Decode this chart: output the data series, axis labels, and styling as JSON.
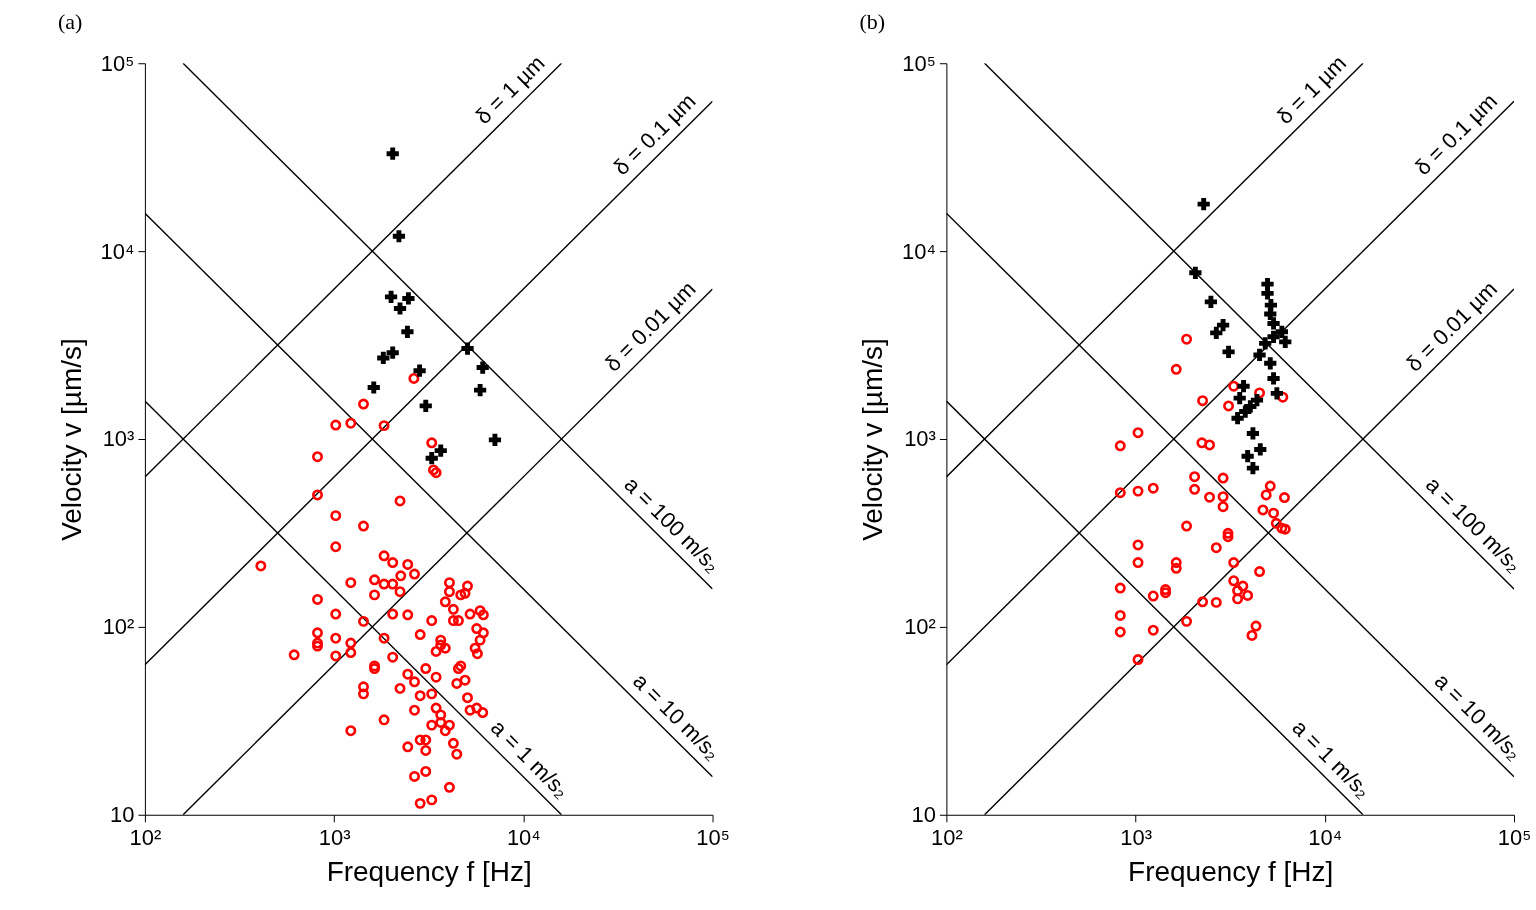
{
  "chart_data": [
    {
      "type": "scatter",
      "title": "(a)",
      "xlabel": "Frequency f [Hz]",
      "ylabel": "Velocity v [µm/s]",
      "log": "xy",
      "xlim": [
        100,
        100000
      ],
      "ylim": [
        10,
        100000
      ],
      "xticks": [
        {
          "value": 100,
          "label": "10²"
        },
        {
          "value": 1000,
          "label": "10³"
        },
        {
          "value": 10000,
          "label": "10⁴"
        },
        {
          "value": 100000,
          "label": "10⁵"
        }
      ],
      "yticks": [
        10,
        {
          "value": 100,
          "label": "10²"
        },
        {
          "value": 1000,
          "label": "10³"
        },
        {
          "value": 10000,
          "label": "10⁴"
        },
        {
          "value": 100000,
          "label": "10⁵"
        }
      ],
      "series": [
        {
          "type": "line",
          "name": "δ = 1 µm",
          "color": "#000000",
          "x": [
            100,
            15915
          ],
          "values": [
            628.3,
            100000
          ]
        },
        {
          "type": "line",
          "name": "δ = 0.1 µm",
          "color": "#000000",
          "x": [
            100,
            100000
          ],
          "values": [
            62.83,
            62832
          ]
        },
        {
          "type": "line",
          "name": "δ = 0.01 µm",
          "color": "#000000",
          "x": [
            159.15,
            100000
          ],
          "values": [
            10,
            6283.2
          ]
        },
        {
          "type": "line",
          "name": "a = 1 m/s₂",
          "color": "#000000",
          "x": [
            100,
            15915
          ],
          "values": [
            1591.5,
            10
          ]
        },
        {
          "type": "line",
          "name": "a = 10 m/s₂",
          "color": "#000000",
          "x": [
            100,
            100000
          ],
          "values": [
            15915,
            15.915
          ]
        },
        {
          "type": "line",
          "name": "a = 100 m/s₂",
          "color": "#000000",
          "x": [
            159.15,
            100000
          ],
          "values": [
            100000,
            159.15
          ]
        },
        {
          "type": "scatter",
          "marker": "circle",
          "color": "#ff0000",
          "x": [
            2640,
            1430,
            1020,
            1225,
            1837,
            817,
            3280,
            3350,
            3460,
            817,
            2230,
            1020,
            1430,
            1020,
            410,
            1837,
            2040,
            2450,
            2660,
            2250,
            1225,
            1635,
            1837,
            2040,
            2230,
            1635,
            4070,
            4070,
            5070,
            4670,
            4920,
            3870,
            817,
            1020,
            1430,
            2040,
            2450,
            3280,
            4270,
            4270,
            4540,
            5230,
            5910,
            6150,
            5670,
            6150,
            5910,
            5560,
            5720,
            817,
            817,
            817,
            1020,
            1225,
            1225,
            1020,
            615,
            1837,
            2850,
            3660,
            3660,
            3870,
            3460,
            2040,
            1635,
            1635,
            3050,
            4540,
            4670,
            2450,
            2660,
            3460,
            4920,
            4450,
            1430,
            1430,
            2230,
            2850,
            3280,
            5070,
            5230,
            5670,
            6100,
            2660,
            3460,
            3660,
            1225,
            1837,
            3280,
            3660,
            4070,
            3870,
            2850,
            3050,
            4270,
            2450,
            3050,
            4450,
            3050,
            2660,
            4070,
            3280,
            2850
          ],
          "values": [
            2100,
            1535,
            1186,
            1213,
            1178,
            805,
            955,
            684,
            662,
            504,
            468,
            391,
            344,
            267,
            211,
            239,
            220,
            215,
            191,
            187,
            172,
            178,
            169,
            169,
            154,
            148,
            172,
            154,
            165,
            148,
            151,
            136,
            140,
            117,
            107,
            117,
            116,
            108,
            124,
            108,
            108,
            117,
            122,
            116,
            98,
            93,
            85,
            77,
            72,
            93,
            82,
            79,
            87,
            82,
            73,
            70,
            71,
            87,
            91,
            85,
            80,
            77,
            74,
            69,
            62,
            60,
            60,
            60,
            62,
            56,
            51,
            54,
            52,
            50,
            48,
            44,
            47,
            43,
            44,
            42,
            36,
            37,
            35,
            36,
            37,
            34,
            28,
            32,
            30,
            31,
            30,
            28,
            25,
            25,
            24,
            23,
            22,
            21,
            17,
            16,
            14,
            12,
            11.5
          ]
        },
        {
          "type": "scatter",
          "marker": "cross",
          "color": "#000000",
          "x": [
            2040,
            2200,
            2000,
            2470,
            2230,
            2440,
            1820,
            2040,
            2830,
            1620,
            3050,
            5070,
            6100,
            5910,
            7080,
            3660,
            3280
          ],
          "values": [
            33000,
            12000,
            5710,
            5600,
            4950,
            3720,
            2700,
            2880,
            2310,
            1880,
            1500,
            3030,
            2400,
            1820,
            990,
            867,
            790
          ]
        }
      ]
    },
    {
      "type": "scatter",
      "title": "(b)",
      "xlabel": "Frequency f [Hz]",
      "ylabel": "Velocity v [µm/s]",
      "log": "xy",
      "xlim": [
        100,
        100000
      ],
      "ylim": [
        10,
        100000
      ],
      "xticks": [
        {
          "value": 100,
          "label": "10²"
        },
        {
          "value": 1000,
          "label": "10³"
        },
        {
          "value": 10000,
          "label": "10⁴"
        },
        {
          "value": 100000,
          "label": "10⁵"
        }
      ],
      "yticks": [
        10,
        {
          "value": 100,
          "label": "10²"
        },
        {
          "value": 1000,
          "label": "10³"
        },
        {
          "value": 10000,
          "label": "10⁴"
        },
        {
          "value": 100000,
          "label": "10⁵"
        }
      ],
      "series": [
        {
          "type": "line",
          "name": "δ = 1 µm",
          "color": "#000000",
          "x": [
            100,
            15915
          ],
          "values": [
            628.3,
            100000
          ]
        },
        {
          "type": "line",
          "name": "δ = 0.1 µm",
          "color": "#000000",
          "x": [
            100,
            100000
          ],
          "values": [
            62.83,
            62832
          ]
        },
        {
          "type": "line",
          "name": "δ = 0.01 µm",
          "color": "#000000",
          "x": [
            159.15,
            100000
          ],
          "values": [
            10,
            6283.2
          ]
        },
        {
          "type": "line",
          "name": "a = 1 m/s₂",
          "color": "#000000",
          "x": [
            100,
            15915
          ],
          "values": [
            1591.5,
            10
          ]
        },
        {
          "type": "line",
          "name": "a = 10 m/s₂",
          "color": "#000000",
          "x": [
            100,
            100000
          ],
          "values": [
            15915,
            15.915
          ]
        },
        {
          "type": "line",
          "name": "a = 100 m/s₂",
          "color": "#000000",
          "x": [
            159.15,
            100000
          ],
          "values": [
            100000,
            159.15
          ]
        },
        {
          "type": "scatter",
          "marker": "circle",
          "color": "#ff0000",
          "x": [
            1860,
            1640,
            3300,
            4520,
            6000,
            2260,
            3100,
            1030,
            830,
            2240,
            2460,
            2050,
            2900,
            830,
            1030,
            1240,
            2050,
            2460,
            2900,
            2900,
            5150,
            4900,
            6120,
            4710,
            5360,
            5540,
            5930,
            6180,
            1860,
            3080,
            3080,
            1030,
            1030,
            1640,
            1640,
            2670,
            3300,
            4520,
            3300,
            3690,
            3460,
            3910,
            3460,
            830,
            1240,
            1440,
            1440,
            2260,
            2670,
            830,
            830,
            1240,
            1860,
            4330,
            4120,
            1030
          ],
          "values": [
            3400,
            2350,
            1910,
            1760,
            1670,
            1600,
            1500,
            1080,
            920,
            955,
            930,
            630,
            620,
            518,
            528,
            547,
            540,
            490,
            493,
            436,
            562,
            504,
            488,
            419,
            403,
            356,
            335,
            331,
            344,
            315,
            302,
            273,
            220,
            220,
            205,
            264,
            220,
            197,
            176,
            165,
            156,
            147,
            141,
            161,
            146,
            158,
            152,
            136,
            135,
            115,
            94,
            96,
            107,
            101,
            90,
            67
          ]
        },
        {
          "type": "scatter",
          "marker": "cross",
          "color": "#000000",
          "x": [
            2290,
            2070,
            2500,
            2900,
            2670,
            3100,
            4980,
            4980,
            5190,
            5150,
            5360,
            5930,
            6180,
            5360,
            4840,
            4520,
            5150,
            5360,
            5580,
            3720,
            3550,
            4380,
            4040,
            3800,
            3460,
            4170,
            4560,
            3910,
            4170
          ],
          "values": [
            17800,
            7670,
            5370,
            4040,
            3670,
            2910,
            6670,
            5960,
            5160,
            4630,
            4120,
            3720,
            3290,
            3500,
            3230,
            2800,
            2530,
            2100,
            1750,
            1910,
            1650,
            1610,
            1490,
            1400,
            1290,
            1070,
            880,
            810,
            700
          ]
        }
      ]
    }
  ]
}
